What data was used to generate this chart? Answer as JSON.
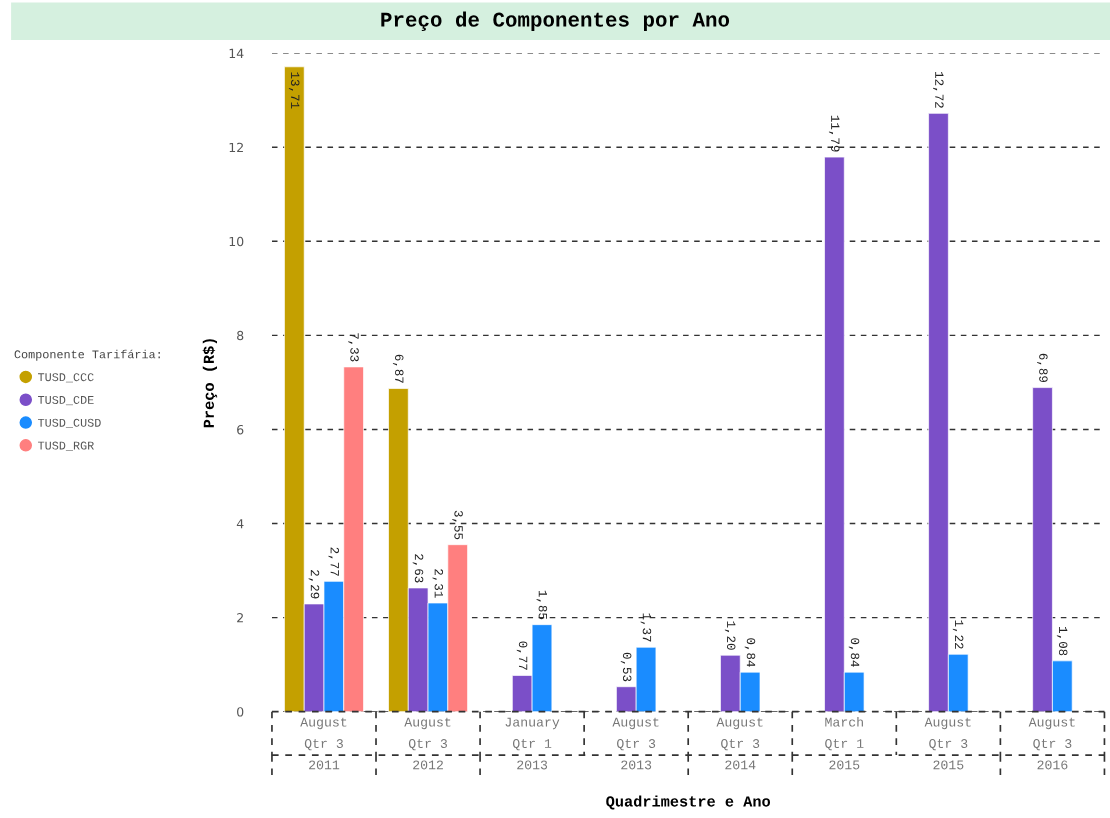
{
  "chart_data": {
    "type": "bar",
    "title": "Preço de Componentes por Ano",
    "xlabel": "Quadrimestre e Ano",
    "ylabel": "Preço (R$)",
    "legend_title": "Componente Tarifária:",
    "categories": [
      "August\nQtr 3\n2011",
      "August\nQtr 3\n2012",
      "January\nQtr 1\n2013",
      "August\nQtr 3\n2013",
      "August\nQtr 3\n2014",
      "March\nQtr 1\n2015",
      "August\nQtr 3\n2015",
      "August\nQtr 3\n2016"
    ],
    "series": [
      {
        "name": "TUSD_CCC",
        "color": "#c4a000",
        "values": [
          13.71,
          6.87,
          null,
          null,
          null,
          null,
          null,
          null
        ],
        "value_labels": [
          "13,71",
          "6,87",
          null,
          null,
          null,
          null,
          null,
          null
        ]
      },
      {
        "name": "TUSD_CDE",
        "color": "#7b4fc8",
        "values": [
          2.29,
          2.63,
          0.77,
          0.53,
          1.2,
          11.79,
          12.72,
          6.89
        ],
        "value_labels": [
          "2,29",
          "2,63",
          "0,77",
          "0,53",
          "1,20",
          "11,79",
          "12,72",
          "6,89"
        ]
      },
      {
        "name": "TUSD_CUSD",
        "color": "#1a8cff",
        "values": [
          2.77,
          2.31,
          1.85,
          1.37,
          0.84,
          0.84,
          1.22,
          1.08
        ],
        "value_labels": [
          "2,77",
          "2,31",
          "1,85",
          "1,37",
          "0,84",
          "0,84",
          "1,22",
          "1,08"
        ]
      },
      {
        "name": "TUSD_RGR",
        "color": "#ff7f7f",
        "values": [
          7.33,
          3.55,
          null,
          null,
          null,
          null,
          null,
          null
        ],
        "value_labels": [
          "7,33",
          "3,55",
          null,
          null,
          null,
          null,
          null,
          null
        ]
      }
    ],
    "ylim": [
      0,
      14
    ],
    "yticks": [
      0,
      2,
      4,
      6,
      8,
      10,
      12,
      14
    ],
    "grid": "y",
    "legend": "left"
  }
}
